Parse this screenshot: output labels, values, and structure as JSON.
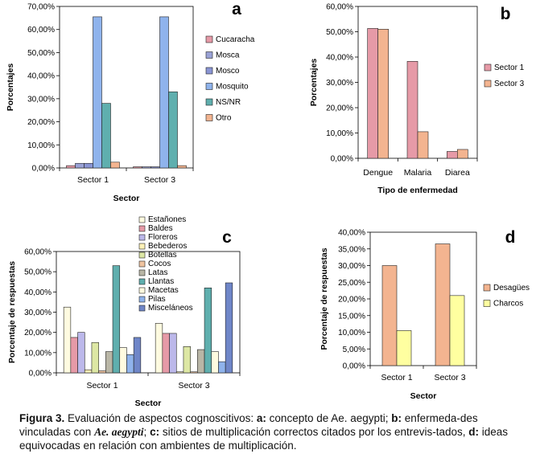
{
  "colors": {
    "cucaracha": "#e69aa7",
    "mosca": "#9aa2d6",
    "mosco": "#8a95d4",
    "mosquito": "#8fb3ec",
    "nsnr": "#5fafae",
    "otro": "#f3b490",
    "sector1": "#e69aa7",
    "sector3": "#f3b490",
    "estanones": "#fffbe0",
    "baldes": "#e69aa7",
    "floreros": "#bcb8ea",
    "bebederos": "#fff2b8",
    "botellas": "#dde7a4",
    "cocos": "#f0c4a0",
    "latas": "#b9b6a6",
    "llantas": "#5fafae",
    "macetas": "#fffbe0",
    "pilas": "#8fb3ec",
    "miscelaneos": "#6f86c8",
    "desagues": "#f3b490",
    "charcos": "#ffffa0"
  },
  "chart_data": [
    {
      "panel": "a",
      "type": "bar",
      "xlabel": "Sector",
      "ylabel": "Porcentajes",
      "ylim": [
        0,
        70
      ],
      "yticks": [
        "0,00%",
        "10,00%",
        "20,00%",
        "30,00%",
        "40,00%",
        "50,00%",
        "60,00%",
        "70,00%"
      ],
      "categories": [
        "Sector 1",
        "Sector 3"
      ],
      "series": [
        {
          "name": "Cucaracha",
          "color": "cucaracha",
          "values": [
            1.0,
            0.5
          ]
        },
        {
          "name": "Mosca",
          "color": "mosca",
          "values": [
            2.0,
            0.5
          ]
        },
        {
          "name": "Mosco",
          "color": "mosco",
          "values": [
            2.0,
            0.5
          ]
        },
        {
          "name": "Mosquito",
          "color": "mosquito",
          "values": [
            65.5,
            65.5
          ]
        },
        {
          "name": "NS/NR",
          "color": "nsnr",
          "values": [
            28.0,
            33.0
          ]
        },
        {
          "name": "Otro",
          "color": "otro",
          "values": [
            2.5,
            1.0
          ]
        }
      ]
    },
    {
      "panel": "b",
      "type": "bar",
      "xlabel": "Tipo de enfermedad",
      "ylabel": "Porcentajes",
      "ylim": [
        0,
        60
      ],
      "yticks": [
        "0,00%",
        "10,00%",
        "20,00%",
        "30,00%",
        "40,00%",
        "50,00%",
        "60,00%"
      ],
      "categories": [
        "Dengue",
        "Malaria",
        "Diarea"
      ],
      "series": [
        {
          "name": "Sector 1",
          "color": "sector1",
          "values": [
            51.3,
            38.3,
            2.7
          ]
        },
        {
          "name": "Sector 3",
          "color": "sector3",
          "values": [
            51.0,
            10.5,
            3.5
          ]
        }
      ]
    },
    {
      "panel": "c",
      "type": "bar",
      "xlabel": "Sector",
      "ylabel": "Porcentaje de respuestas",
      "ylim": [
        0,
        60
      ],
      "yticks": [
        "0,00%",
        "10,00%",
        "20,00%",
        "30,00%",
        "40,00%",
        "50,00%",
        "60,00%"
      ],
      "categories": [
        "Sector 1",
        "Sector 3"
      ],
      "series": [
        {
          "name": "Estañones",
          "color": "estanones",
          "values": [
            32.5,
            24.5
          ]
        },
        {
          "name": "Baldes",
          "color": "baldes",
          "values": [
            17.5,
            19.5
          ]
        },
        {
          "name": "Floreros",
          "color": "floreros",
          "values": [
            20.0,
            19.5
          ]
        },
        {
          "name": "Bebederos",
          "color": "bebederos",
          "values": [
            1.5,
            0.5
          ]
        },
        {
          "name": "Botellas",
          "color": "botellas",
          "values": [
            15.0,
            13.0
          ]
        },
        {
          "name": "Cocos",
          "color": "cocos",
          "values": [
            1.0,
            0.5
          ]
        },
        {
          "name": "Latas",
          "color": "latas",
          "values": [
            10.5,
            11.5
          ]
        },
        {
          "name": "Llantas",
          "color": "llantas",
          "values": [
            53.0,
            42.0
          ]
        },
        {
          "name": "Macetas",
          "color": "macetas",
          "values": [
            12.5,
            10.5
          ]
        },
        {
          "name": "Pilas",
          "color": "pilas",
          "values": [
            9.0,
            5.5
          ]
        },
        {
          "name": "Misceláneos",
          "color": "miscelaneos",
          "values": [
            17.5,
            44.5
          ]
        }
      ]
    },
    {
      "panel": "d",
      "type": "bar",
      "xlabel": "Sector",
      "ylabel": "Porcentaje de respuestas",
      "ylim": [
        0,
        40
      ],
      "yticks": [
        "0,00%",
        "5,00%",
        "10,00%",
        "15,00%",
        "20,00%",
        "25,00%",
        "30,00%",
        "35,00%",
        "40,00%"
      ],
      "categories": [
        "Sector 1",
        "Sector 3"
      ],
      "series": [
        {
          "name": "Desagües",
          "color": "desagues",
          "values": [
            30.0,
            36.5
          ]
        },
        {
          "name": "Charcos",
          "color": "charcos",
          "values": [
            10.5,
            21.0
          ]
        }
      ]
    }
  ],
  "caption": {
    "figure_label": "Figura 3.",
    "p1": " Evaluación de aspectos cognoscitivos: ",
    "a": "a:",
    "p2": " concepto de Ae. aegypti; ",
    "b": "b:",
    "p3": " enfermeda-des vinculadas con ",
    "species": "Ae. aegypti",
    "p4": "; ",
    "c": "c:",
    "p5": " sitios de multiplicación correctos citados por los entrevis-tados, ",
    "d": "d:",
    "p6": " ideas equivocadas en relación con ambientes de multiplicación."
  }
}
